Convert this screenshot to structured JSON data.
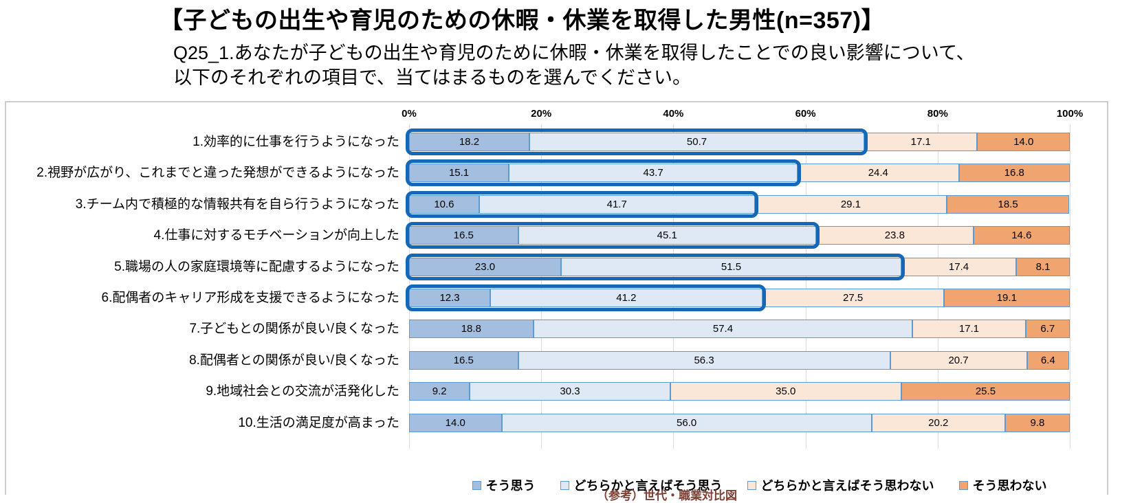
{
  "header": {
    "title": "【子どもの出生や育児のための休暇・休業を取得した男性(n=357)】",
    "question_line1": "Q25_1.あなたが子どもの出生や育児のために休暇・休業を取得したことでの良い影響について、",
    "question_line2": "以下のそれぞれの項目で、当てはまるものを選んでください。"
  },
  "chart_data": {
    "type": "bar",
    "stacked": true,
    "orientation": "horizontal",
    "unit": "%",
    "grid": true,
    "legend_position": "bottom",
    "x_axis": {
      "position": "top",
      "min": 0,
      "max": 100,
      "ticks": [
        "0%",
        "20%",
        "40%",
        "60%",
        "80%",
        "100%"
      ]
    },
    "categories": [
      "1.効率的に仕事を行うようになった",
      "2.視野が広がり、これまでと違った発想ができるようになった",
      "3.チーム内で積極的な情報共有を自ら行うようになった",
      "4.仕事に対するモチベーションが向上した",
      "5.職場の人の家庭環境等に配慮するようになった",
      "6.配偶者のキャリア形成を支援できるようになった",
      "7.子どもとの関係が良い/良くなった",
      "8.配偶者との関係が良い/良くなった",
      "9.地域社会との交流が活発化した",
      "10.生活の満足度が高まった"
    ],
    "series": [
      {
        "name": "そう思う",
        "color": "#A3BEDE",
        "values": [
          18.2,
          15.1,
          10.6,
          16.5,
          23.0,
          12.3,
          18.8,
          16.5,
          9.2,
          14.0
        ]
      },
      {
        "name": "どちらかと言えばそう思う",
        "color": "#DEE9F5",
        "values": [
          50.7,
          43.7,
          41.7,
          45.1,
          51.5,
          41.2,
          57.4,
          56.3,
          30.3,
          56.0
        ]
      },
      {
        "name": "どちらかと言えばそう思わない",
        "color": "#FBE7D8",
        "values": [
          17.1,
          24.4,
          29.1,
          23.8,
          17.4,
          27.5,
          17.1,
          20.7,
          35.0,
          20.2
        ]
      },
      {
        "name": "そう思わない",
        "color": "#F0A470",
        "values": [
          14.0,
          16.8,
          18.5,
          14.6,
          8.1,
          19.1,
          6.7,
          6.4,
          25.5,
          9.8
        ]
      }
    ],
    "highlight": {
      "rows": [
        0,
        1,
        2,
        3,
        4,
        5
      ],
      "segments_enclosed": [
        0,
        1
      ],
      "border_color": "#1568B8"
    },
    "segment_border_color": "#5B9BD5",
    "gridline_color": "#DADADA"
  },
  "footer": {
    "cropped_caption": "（参考）世代・職業対比図"
  }
}
